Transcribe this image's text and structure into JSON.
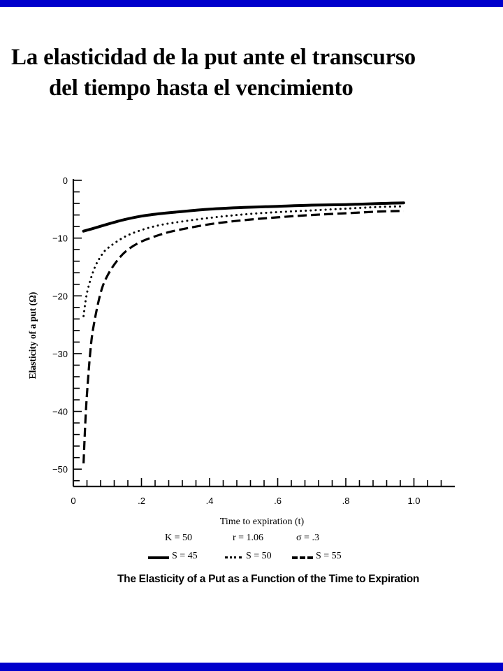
{
  "slide": {
    "title_line1": "La elasticidad de la put ante el transcurso",
    "title_line2": "del tiempo hasta el vencimiento",
    "caption": "The Elasticity of a Put as a Function of the Time to Expiration",
    "border_color": "#0000cc"
  },
  "params": {
    "K": "K = 50",
    "r": "r = 1.06",
    "sigma": "σ = .3"
  },
  "chart_data": {
    "type": "line",
    "xlabel": "Time to expiration (t)",
    "ylabel": "Elasticity of a put (Ω)",
    "xlim": [
      0,
      1.12
    ],
    "ylim": [
      -53,
      0
    ],
    "x_ticks": [
      "0",
      ".2",
      ".4",
      ".6",
      ".8",
      "1.0"
    ],
    "x_tick_values": [
      0,
      0.2,
      0.4,
      0.6,
      0.8,
      1.0
    ],
    "y_ticks": [
      "0",
      "−10",
      "−20",
      "−30",
      "−40",
      "−50"
    ],
    "y_tick_values": [
      0,
      -10,
      -20,
      -30,
      -40,
      -50
    ],
    "grid": false,
    "legend": "below",
    "series": [
      {
        "name": "S = 45",
        "style": "solid",
        "x": [
          0.03,
          0.06,
          0.1,
          0.15,
          0.2,
          0.25,
          0.3,
          0.4,
          0.5,
          0.6,
          0.7,
          0.8,
          0.9,
          0.97
        ],
        "values": [
          -8.8,
          -8.3,
          -7.6,
          -6.8,
          -6.2,
          -5.8,
          -5.5,
          -5.0,
          -4.7,
          -4.5,
          -4.3,
          -4.2,
          -4.0,
          -3.9
        ]
      },
      {
        "name": "S = 50",
        "style": "dotted",
        "x": [
          0.03,
          0.04,
          0.06,
          0.08,
          0.1,
          0.15,
          0.2,
          0.25,
          0.3,
          0.4,
          0.5,
          0.6,
          0.7,
          0.8,
          0.9,
          0.97
        ],
        "values": [
          -23.5,
          -19.5,
          -15.5,
          -13.2,
          -11.8,
          -9.8,
          -8.6,
          -7.8,
          -7.3,
          -6.5,
          -5.9,
          -5.5,
          -5.2,
          -4.9,
          -4.6,
          -4.5
        ]
      },
      {
        "name": "S = 55",
        "style": "dashed",
        "x": [
          0.03,
          0.035,
          0.04,
          0.05,
          0.06,
          0.08,
          0.1,
          0.13,
          0.16,
          0.2,
          0.25,
          0.3,
          0.4,
          0.5,
          0.6,
          0.7,
          0.8,
          0.9,
          0.97
        ],
        "values": [
          -49.0,
          -42.0,
          -37.0,
          -29.5,
          -25.0,
          -19.5,
          -16.5,
          -13.8,
          -12.0,
          -10.6,
          -9.5,
          -8.7,
          -7.6,
          -6.9,
          -6.4,
          -6.0,
          -5.7,
          -5.4,
          -5.3
        ]
      }
    ]
  }
}
